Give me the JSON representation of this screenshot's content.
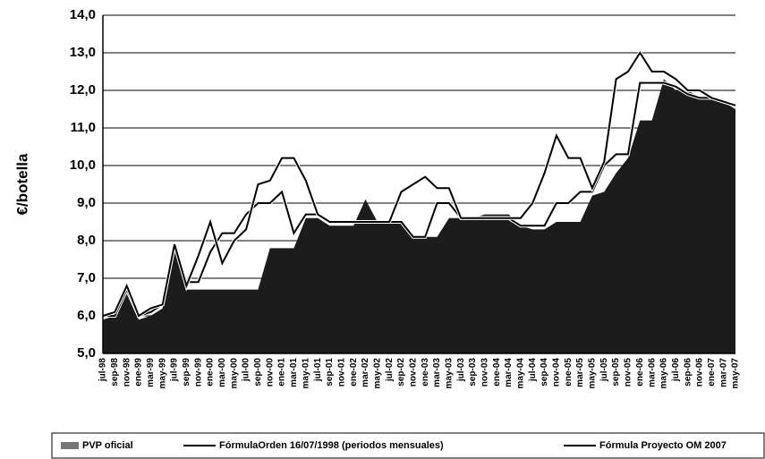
{
  "chart_data": {
    "type": "area-line",
    "y_label": "€/botella",
    "categories": [
      "jul-98",
      "sep-98",
      "nov-98",
      "ene-99",
      "mar-99",
      "may-99",
      "jul-99",
      "sep-99",
      "nov-99",
      "ene-00",
      "mar-00",
      "may-00",
      "jul-00",
      "sep-00",
      "nov-00",
      "ene-01",
      "mar-01",
      "may-01",
      "jul-01",
      "sep-01",
      "nov-01",
      "ene-02",
      "mar-02",
      "may-02",
      "jul-02",
      "sep-02",
      "nov-02",
      "ene-03",
      "mar-03",
      "may-03",
      "jul-03",
      "sep-03",
      "nov-03",
      "ene-04",
      "mar-04",
      "may-04",
      "jul-04",
      "sep-04",
      "nov-04",
      "ene-05",
      "mar-05",
      "may-05",
      "jul-05",
      "sep-05",
      "nov-05",
      "ene-06",
      "mar-06",
      "may-06",
      "jul-06",
      "sep-06",
      "nov-06",
      "ene-07",
      "mar-07",
      "may-07"
    ],
    "series": [
      {
        "name": "PVP oficial",
        "kind": "area",
        "color": "#1c1c1c",
        "values": [
          5.9,
          6.0,
          6.6,
          5.9,
          6.0,
          6.2,
          7.9,
          6.7,
          6.7,
          6.7,
          6.7,
          6.7,
          6.7,
          6.7,
          7.8,
          7.8,
          7.8,
          8.6,
          8.6,
          8.4,
          8.4,
          8.4,
          9.1,
          8.5,
          8.5,
          8.5,
          8.1,
          8.1,
          8.1,
          8.6,
          8.6,
          8.6,
          8.7,
          8.7,
          8.7,
          8.4,
          8.3,
          8.3,
          8.5,
          8.5,
          8.5,
          9.2,
          9.3,
          9.8,
          10.2,
          11.2,
          11.2,
          12.3,
          12.0,
          12.0,
          11.8,
          11.8,
          11.7,
          11.5
        ]
      },
      {
        "name": "FórmulaOrden 16/07/1998 (periodos mensuales)",
        "kind": "line",
        "color": "#000000",
        "values": [
          6.0,
          6.0,
          6.7,
          6.0,
          6.1,
          6.3,
          7.9,
          6.9,
          6.9,
          7.7,
          8.2,
          8.2,
          8.7,
          9.0,
          9.0,
          9.3,
          8.2,
          8.7,
          8.7,
          8.5,
          8.5,
          8.5,
          8.5,
          8.5,
          8.5,
          8.5,
          8.1,
          8.1,
          9.0,
          9.0,
          8.6,
          8.6,
          8.6,
          8.6,
          8.6,
          8.4,
          8.4,
          8.4,
          9.0,
          9.0,
          9.3,
          9.3,
          10.0,
          10.3,
          10.3,
          12.2,
          12.2,
          12.2,
          12.1,
          11.9,
          11.8,
          11.8,
          11.7,
          11.6
        ]
      },
      {
        "name": "Fórmula Proyecto OM 2007",
        "kind": "line",
        "color": "#000000",
        "values": [
          6.0,
          6.1,
          6.8,
          6.0,
          6.2,
          6.3,
          7.9,
          6.8,
          7.6,
          8.5,
          7.4,
          8.0,
          8.3,
          9.5,
          9.6,
          10.2,
          10.2,
          9.6,
          8.7,
          8.5,
          8.5,
          8.5,
          8.5,
          8.5,
          8.5,
          9.3,
          9.5,
          9.7,
          9.4,
          9.4,
          8.6,
          8.6,
          8.6,
          8.6,
          8.6,
          8.6,
          9.0,
          9.8,
          10.8,
          10.2,
          10.2,
          9.4,
          10.1,
          12.3,
          12.5,
          13.0,
          12.5,
          12.5,
          12.3,
          12.0,
          12.0,
          11.8,
          11.7,
          11.6
        ]
      }
    ],
    "ylim": [
      5,
      14
    ],
    "yticks": [
      {
        "value": 5,
        "label": "5,0"
      },
      {
        "value": 6,
        "label": "6,0"
      },
      {
        "value": 7,
        "label": "7,0"
      },
      {
        "value": 8,
        "label": "8,0"
      },
      {
        "value": 9,
        "label": "9,0"
      },
      {
        "value": 10,
        "label": "10,0"
      },
      {
        "value": 11,
        "label": "11,0"
      },
      {
        "value": 12,
        "label": "12,0"
      },
      {
        "value": 13,
        "label": "13,0"
      },
      {
        "value": 14,
        "label": "14,0"
      }
    ],
    "grid": true,
    "legend": "bottom"
  }
}
